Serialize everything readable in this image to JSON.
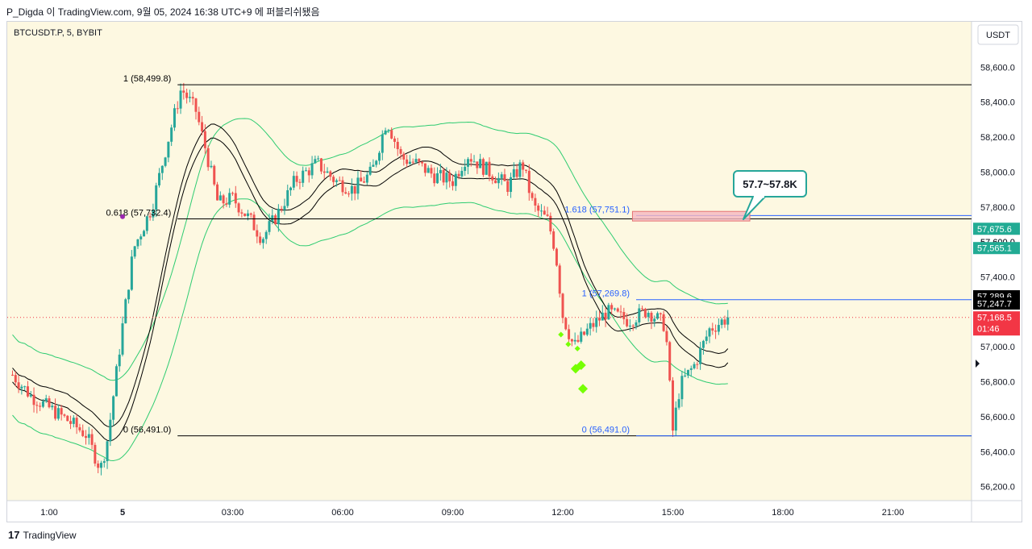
{
  "header": {
    "caption": "P_Digda 이 TradingView.com, 9월 05, 2024 16:38 UTC+9 에 퍼블리쉬됐음"
  },
  "footer": {
    "logo_glyph": "17",
    "brand": "TradingView"
  },
  "colors": {
    "background": "#fdf8e1",
    "up": "#26a69a",
    "down": "#ef5350",
    "envelope": "#2ecc71",
    "band": "#000000",
    "fib_black": "#000000",
    "fib_blue": "#2962ff",
    "zone_fill": "#f5b7c0",
    "zone_border": "#e57373",
    "callout_border": "#26a69a",
    "last_price": "#f23645",
    "green_label": "#22ab94",
    "diamond": "#76ff03"
  },
  "chart_data": {
    "type": "candlestick",
    "symbol_label": "BTCUSDT.P, 5, BYBIT",
    "currency": "USDT",
    "ylim": [
      56120,
      58860
    ],
    "y_ticks": [
      56200,
      56400,
      56600,
      56800,
      57000,
      57200,
      57400,
      57600,
      57800,
      58000,
      58200,
      58400,
      58600
    ],
    "y_tick_labels": [
      "56,200.0",
      "56,400.0",
      "56,600.0",
      "56,800.0",
      "57,000.0",
      "",
      "57,400.0",
      "57,600.0",
      "57,800.0",
      "58,000.0",
      "58,200.0",
      "58,400.0",
      "58,600.0"
    ],
    "x_ticks": [
      {
        "t": -2.0,
        "label": "1:00",
        "bold": false
      },
      {
        "t": 0.0,
        "label": "5",
        "bold": true
      },
      {
        "t": 3.0,
        "label": "03:00",
        "bold": false
      },
      {
        "t": 6.0,
        "label": "06:00",
        "bold": false
      },
      {
        "t": 9.0,
        "label": "09:00",
        "bold": false
      },
      {
        "t": 12.0,
        "label": "12:00",
        "bold": false
      },
      {
        "t": 15.0,
        "label": "15:00",
        "bold": false
      },
      {
        "t": 18.0,
        "label": "18:00",
        "bold": false
      },
      {
        "t": 21.0,
        "label": "21:00",
        "bold": false
      }
    ],
    "fib_sets": [
      {
        "name": "left",
        "color": "black",
        "t_start": 1.5,
        "t_end": 23.5,
        "levels": [
          {
            "ratio": "1",
            "price": 58499.8,
            "label": "1 (58,499.8)"
          },
          {
            "ratio": "0.618",
            "price": 57732.4,
            "label": "0.618 (57,732.4)"
          },
          {
            "ratio": "0",
            "price": 56491.0,
            "label": "0 (56,491.0)"
          }
        ]
      },
      {
        "name": "right",
        "color": "blue",
        "t_start": 14.0,
        "t_end": 23.5,
        "levels": [
          {
            "ratio": "1.618",
            "price": 57751.1,
            "label": "1.618 (57,751.1)"
          },
          {
            "ratio": "1",
            "price": 57269.8,
            "label": "1 (57,269.8)"
          },
          {
            "ratio": "0",
            "price": 56491.0,
            "label": "0 (56,491.0)"
          }
        ]
      }
    ],
    "target_zone": {
      "price_low": 57720,
      "price_high": 57775,
      "t_start": 13.9,
      "t_end": 17.1,
      "label": "57.7~57.8K"
    },
    "price_labels": [
      {
        "value": "57,675.6",
        "price": 57675.6,
        "kind": "green"
      },
      {
        "value": "57,565.1",
        "price": 57565.1,
        "kind": "green"
      },
      {
        "value": "57,289.6",
        "price": 57289.6,
        "kind": "black"
      },
      {
        "value": "57,247.7",
        "price": 57247.7,
        "kind": "black"
      },
      {
        "value": "57,168.5",
        "price": 57168.5,
        "kind": "red",
        "countdown": "01:46"
      }
    ],
    "partial_labels": [
      {
        "value": "57,600.0",
        "price": 57600
      }
    ],
    "last_price": 57168.5,
    "diamonds": [
      {
        "t": 11.95,
        "price": 57070,
        "size": "small"
      },
      {
        "t": 12.15,
        "price": 57015,
        "size": "small"
      },
      {
        "t": 12.4,
        "price": 56990,
        "size": "small"
      },
      {
        "t": 12.35,
        "price": 56875,
        "size": "large"
      },
      {
        "t": 12.5,
        "price": 56895,
        "size": "large"
      },
      {
        "t": 12.55,
        "price": 56760,
        "size": "large"
      }
    ],
    "marker": {
      "t": 0.0,
      "price": 57745
    },
    "key_prices": [
      [
        -3.0,
        56840
      ],
      [
        -2.5,
        56720
      ],
      [
        -2.0,
        56650
      ],
      [
        -1.5,
        56580
      ],
      [
        -1.0,
        56500
      ],
      [
        -0.6,
        56300
      ],
      [
        -0.4,
        56480
      ],
      [
        0.0,
        57120
      ],
      [
        0.3,
        57560
      ],
      [
        0.8,
        57800
      ],
      [
        1.2,
        58150
      ],
      [
        1.6,
        58480
      ],
      [
        2.0,
        58350
      ],
      [
        2.3,
        58100
      ],
      [
        2.6,
        57820
      ],
      [
        3.0,
        57850
      ],
      [
        3.5,
        57720
      ],
      [
        3.8,
        57620
      ],
      [
        4.2,
        57750
      ],
      [
        4.7,
        57950
      ],
      [
        5.3,
        58050
      ],
      [
        5.8,
        57950
      ],
      [
        6.3,
        57900
      ],
      [
        6.8,
        58000
      ],
      [
        7.2,
        58300
      ],
      [
        7.6,
        58080
      ],
      [
        8.0,
        58050
      ],
      [
        8.5,
        57980
      ],
      [
        9.0,
        57950
      ],
      [
        9.4,
        58100
      ],
      [
        10.0,
        58000
      ],
      [
        10.5,
        57920
      ],
      [
        10.9,
        58050
      ],
      [
        11.2,
        57800
      ],
      [
        11.6,
        57720
      ],
      [
        11.8,
        57550
      ],
      [
        12.0,
        57180
      ],
      [
        12.3,
        57000
      ],
      [
        12.7,
        57100
      ],
      [
        13.2,
        57200
      ],
      [
        13.8,
        57150
      ],
      [
        14.3,
        57210
      ],
      [
        14.8,
        57120
      ],
      [
        15.0,
        56520
      ],
      [
        15.2,
        56780
      ],
      [
        15.6,
        56900
      ],
      [
        16.0,
        57100
      ],
      [
        16.5,
        57168
      ]
    ],
    "last_t": 16.5
  }
}
